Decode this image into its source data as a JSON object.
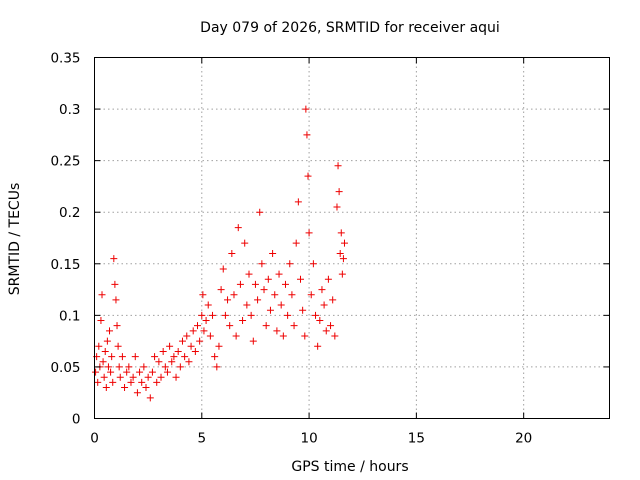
{
  "chart_data": {
    "type": "scatter",
    "title": "Day 079 of 2026, SRMTID for receiver aqui",
    "xlabel": "GPS time / hours",
    "ylabel": "SRMTID / TECUs",
    "xlim": [
      0,
      24
    ],
    "ylim": [
      0,
      0.35
    ],
    "xticks": [
      0,
      5,
      10,
      15,
      20
    ],
    "xtick_labels": [
      "0",
      "5",
      "10",
      "15",
      "20"
    ],
    "yticks": [
      0,
      0.05,
      0.1,
      0.15,
      0.2,
      0.25,
      0.3,
      0.35
    ],
    "ytick_labels": [
      "0",
      "0.05",
      "0.1",
      "0.15",
      "0.2",
      "0.25",
      "0.3",
      "0.35"
    ],
    "grid": true,
    "marker": "plus",
    "color": "#ee0000",
    "series": [
      {
        "name": "SRMTID",
        "points": [
          [
            0.05,
            0.045
          ],
          [
            0.1,
            0.06
          ],
          [
            0.15,
            0.035
          ],
          [
            0.2,
            0.07
          ],
          [
            0.25,
            0.05
          ],
          [
            0.3,
            0.095
          ],
          [
            0.35,
            0.12
          ],
          [
            0.4,
            0.055
          ],
          [
            0.45,
            0.04
          ],
          [
            0.5,
            0.065
          ],
          [
            0.55,
            0.03
          ],
          [
            0.6,
            0.075
          ],
          [
            0.65,
            0.05
          ],
          [
            0.7,
            0.085
          ],
          [
            0.75,
            0.045
          ],
          [
            0.8,
            0.06
          ],
          [
            0.85,
            0.035
          ],
          [
            0.9,
            0.155
          ],
          [
            0.95,
            0.13
          ],
          [
            1.0,
            0.115
          ],
          [
            1.05,
            0.09
          ],
          [
            1.1,
            0.07
          ],
          [
            1.15,
            0.05
          ],
          [
            1.2,
            0.04
          ],
          [
            1.3,
            0.06
          ],
          [
            1.4,
            0.03
          ],
          [
            1.5,
            0.045
          ],
          [
            1.6,
            0.05
          ],
          [
            1.7,
            0.035
          ],
          [
            1.8,
            0.04
          ],
          [
            1.9,
            0.06
          ],
          [
            2.0,
            0.025
          ],
          [
            2.1,
            0.045
          ],
          [
            2.2,
            0.035
          ],
          [
            2.3,
            0.05
          ],
          [
            2.4,
            0.03
          ],
          [
            2.5,
            0.04
          ],
          [
            2.6,
            0.02
          ],
          [
            2.7,
            0.045
          ],
          [
            2.8,
            0.06
          ],
          [
            2.9,
            0.035
          ],
          [
            3.0,
            0.055
          ],
          [
            3.1,
            0.04
          ],
          [
            3.2,
            0.065
          ],
          [
            3.3,
            0.05
          ],
          [
            3.4,
            0.045
          ],
          [
            3.5,
            0.07
          ],
          [
            3.6,
            0.055
          ],
          [
            3.7,
            0.06
          ],
          [
            3.8,
            0.04
          ],
          [
            3.9,
            0.065
          ],
          [
            4.0,
            0.05
          ],
          [
            4.1,
            0.075
          ],
          [
            4.2,
            0.06
          ],
          [
            4.3,
            0.08
          ],
          [
            4.4,
            0.055
          ],
          [
            4.5,
            0.07
          ],
          [
            4.6,
            0.085
          ],
          [
            4.7,
            0.065
          ],
          [
            4.8,
            0.09
          ],
          [
            4.9,
            0.075
          ],
          [
            5.0,
            0.1
          ],
          [
            5.05,
            0.12
          ],
          [
            5.1,
            0.085
          ],
          [
            5.2,
            0.095
          ],
          [
            5.3,
            0.11
          ],
          [
            5.4,
            0.08
          ],
          [
            5.5,
            0.1
          ],
          [
            5.6,
            0.06
          ],
          [
            5.7,
            0.05
          ],
          [
            5.8,
            0.07
          ],
          [
            5.9,
            0.125
          ],
          [
            6.0,
            0.145
          ],
          [
            6.1,
            0.1
          ],
          [
            6.2,
            0.115
          ],
          [
            6.3,
            0.09
          ],
          [
            6.4,
            0.16
          ],
          [
            6.5,
            0.12
          ],
          [
            6.6,
            0.08
          ],
          [
            6.7,
            0.185
          ],
          [
            6.8,
            0.13
          ],
          [
            6.9,
            0.095
          ],
          [
            7.0,
            0.17
          ],
          [
            7.1,
            0.11
          ],
          [
            7.2,
            0.14
          ],
          [
            7.3,
            0.1
          ],
          [
            7.4,
            0.075
          ],
          [
            7.5,
            0.13
          ],
          [
            7.6,
            0.115
          ],
          [
            7.7,
            0.2
          ],
          [
            7.8,
            0.15
          ],
          [
            7.9,
            0.125
          ],
          [
            8.0,
            0.09
          ],
          [
            8.1,
            0.135
          ],
          [
            8.2,
            0.105
          ],
          [
            8.3,
            0.16
          ],
          [
            8.4,
            0.12
          ],
          [
            8.5,
            0.085
          ],
          [
            8.6,
            0.14
          ],
          [
            8.7,
            0.11
          ],
          [
            8.8,
            0.08
          ],
          [
            8.9,
            0.13
          ],
          [
            9.0,
            0.1
          ],
          [
            9.1,
            0.15
          ],
          [
            9.2,
            0.12
          ],
          [
            9.3,
            0.09
          ],
          [
            9.4,
            0.17
          ],
          [
            9.5,
            0.21
          ],
          [
            9.6,
            0.135
          ],
          [
            9.7,
            0.105
          ],
          [
            9.8,
            0.08
          ],
          [
            9.85,
            0.3
          ],
          [
            9.9,
            0.275
          ],
          [
            9.95,
            0.235
          ],
          [
            10.0,
            0.18
          ],
          [
            10.1,
            0.12
          ],
          [
            10.2,
            0.15
          ],
          [
            10.3,
            0.1
          ],
          [
            10.4,
            0.07
          ],
          [
            10.5,
            0.095
          ],
          [
            10.6,
            0.125
          ],
          [
            10.7,
            0.11
          ],
          [
            10.8,
            0.085
          ],
          [
            10.9,
            0.135
          ],
          [
            11.0,
            0.09
          ],
          [
            11.1,
            0.115
          ],
          [
            11.2,
            0.08
          ],
          [
            11.3,
            0.205
          ],
          [
            11.35,
            0.245
          ],
          [
            11.4,
            0.22
          ],
          [
            11.45,
            0.16
          ],
          [
            11.5,
            0.18
          ],
          [
            11.55,
            0.14
          ],
          [
            11.6,
            0.155
          ],
          [
            11.65,
            0.17
          ]
        ]
      }
    ]
  }
}
